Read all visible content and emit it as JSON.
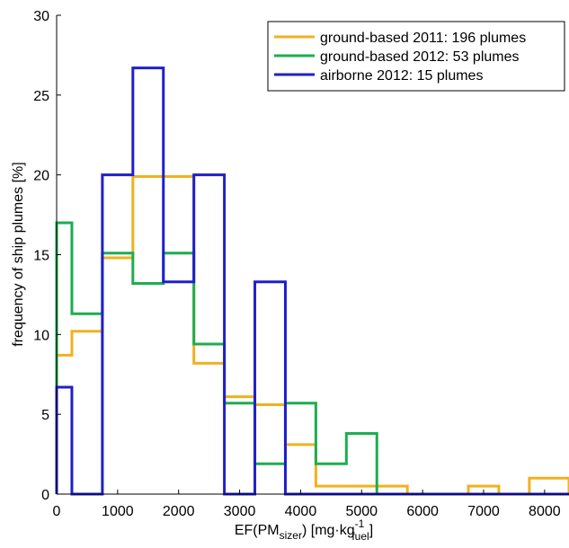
{
  "chart_data": {
    "type": "histogram-step",
    "xlabel": {
      "prefix": "EF(PM",
      "sub1": "sizer",
      "mid": ") [mg·kg",
      "sup": "-1",
      "sub2": "fuel",
      "suffix": "]"
    },
    "ylabel": "frequency of ship plumes [%]",
    "xlim": [
      0,
      8400
    ],
    "ylim": [
      0,
      30
    ],
    "x_ticks": [
      0,
      1000,
      2000,
      3000,
      4000,
      5000,
      6000,
      7000,
      8000
    ],
    "y_ticks": [
      0,
      5,
      10,
      15,
      20,
      25,
      30
    ],
    "bin_edges": [
      0,
      250,
      750,
      1250,
      1750,
      2250,
      2750,
      3250,
      3750,
      4250,
      4750,
      5250,
      5750,
      6250,
      6750,
      7250,
      7750,
      8250,
      8400
    ],
    "legend_position": "top-right",
    "series": [
      {
        "name": "ground-based 2011: 196 plumes",
        "color": "#F2B01E",
        "values": [
          8.7,
          10.2,
          14.8,
          19.9,
          19.9,
          8.2,
          6.1,
          5.6,
          3.1,
          0.5,
          0.5,
          0.5,
          0,
          0,
          0.5,
          0,
          1.0,
          1.0
        ]
      },
      {
        "name": "ground-based 2012: 53 plumes",
        "color": "#1CAD4E",
        "values": [
          17.0,
          11.3,
          15.1,
          13.2,
          15.1,
          9.4,
          5.7,
          1.9,
          5.7,
          1.9,
          3.8,
          0,
          0,
          0,
          0,
          0,
          0,
          0
        ]
      },
      {
        "name": "airborne 2012: 15 plumes",
        "color": "#1F1FCC",
        "values": [
          6.7,
          0,
          20.0,
          26.7,
          13.3,
          20.0,
          0,
          13.3,
          0,
          0,
          0,
          0,
          0,
          0,
          0,
          0,
          0,
          0
        ]
      }
    ]
  }
}
